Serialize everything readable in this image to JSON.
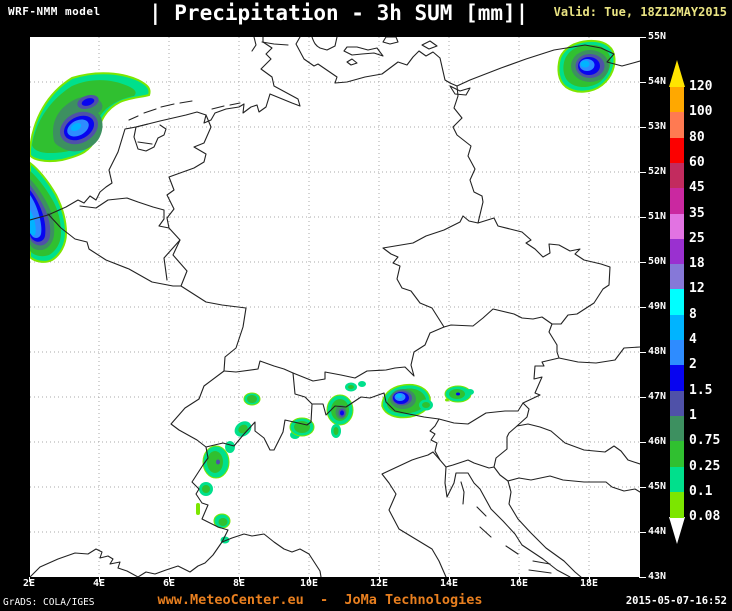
{
  "header": {
    "model_label": "WRF-NMM model",
    "title": "| Precipitation - 3h SUM [mm]|",
    "valid_label": "Valid: Tue, 18Z12MAY2015",
    "valid_color": "#e9e382"
  },
  "footer": {
    "grads_label": "GrADS: COLA/IGES",
    "center_label": "www.MeteoCenter.eu  -  JoMa Technologies",
    "center_color": "#e87f1f",
    "timestamp": "2015-05-07-16:52"
  },
  "axes": {
    "x_labels": [
      "2E",
      "4E",
      "6E",
      "8E",
      "10E",
      "12E",
      "14E",
      "16E",
      "18E"
    ],
    "y_labels": [
      "55N",
      "54N",
      "53N",
      "52N",
      "51N",
      "50N",
      "49N",
      "48N",
      "47N",
      "46N",
      "45N",
      "44N",
      "43N"
    ]
  },
  "legend": {
    "values": [
      "120",
      "100",
      "80",
      "60",
      "45",
      "35",
      "25",
      "18",
      "12",
      "8",
      "4",
      "2",
      "1.5",
      "1",
      "0.75",
      "0.25",
      "0.1",
      "0.08"
    ],
    "colors": [
      "#ffa800",
      "#ff7a52",
      "#fc0000",
      "#c22b5e",
      "#ca28a0",
      "#e273e2",
      "#9a30d0",
      "#8678d8",
      "#00ffff",
      "#00b4ff",
      "#2e8cff",
      "#0704f0",
      "#4f51a8",
      "#3d9060",
      "#30c030",
      "#00e08c",
      "#7ce600"
    ],
    "above_color": "#ffe400",
    "below_color": "#ffffff"
  }
}
